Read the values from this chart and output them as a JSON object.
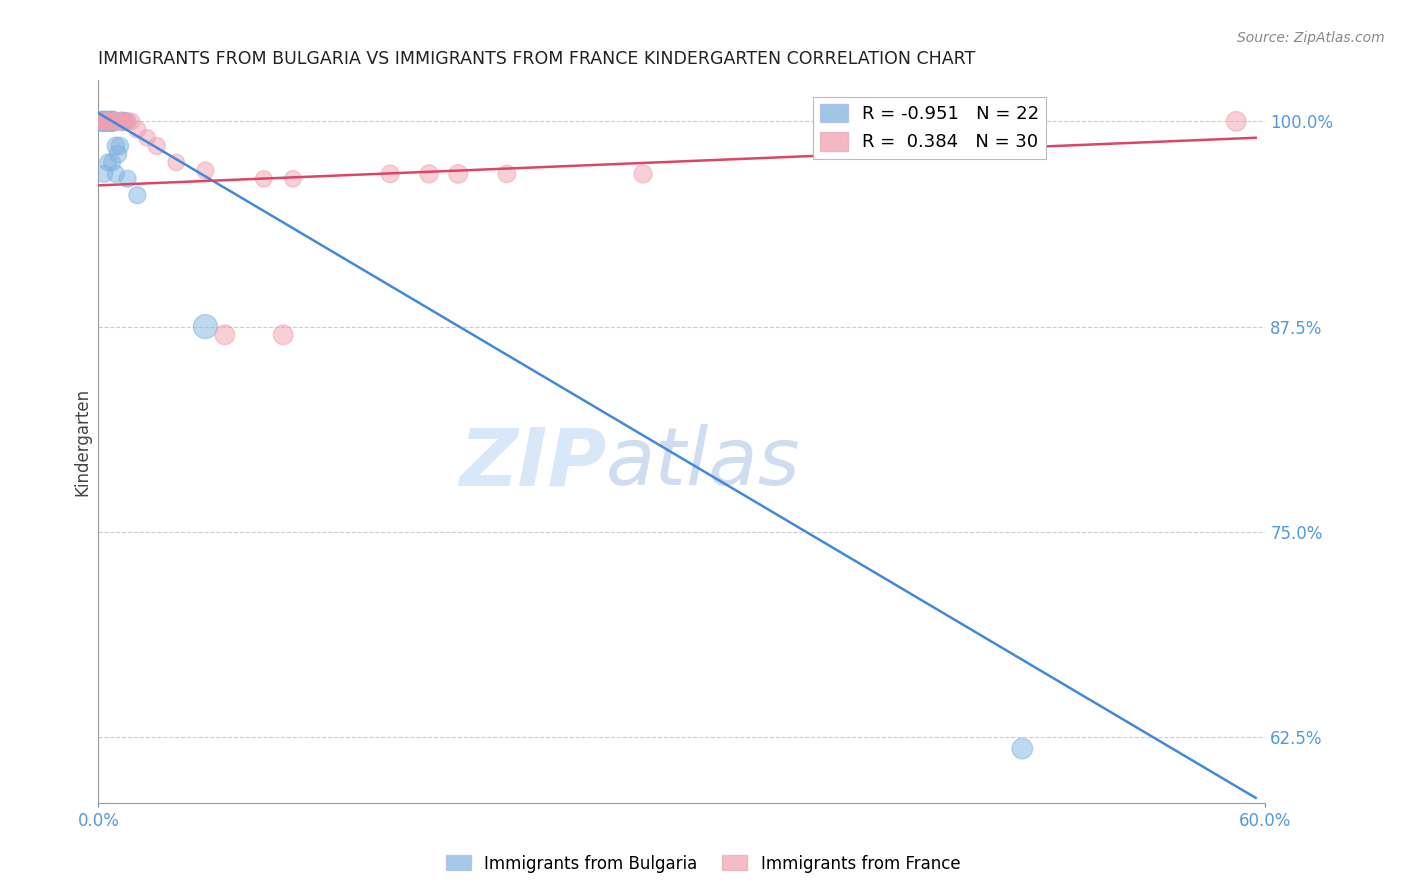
{
  "title": "IMMIGRANTS FROM BULGARIA VS IMMIGRANTS FROM FRANCE KINDERGARTEN CORRELATION CHART",
  "source": "Source: ZipAtlas.com",
  "ylabel": "Kindergarten",
  "watermark_zip": "ZIP",
  "watermark_atlas": "atlas",
  "x_min": 0.0,
  "x_max": 0.6,
  "y_min": 0.585,
  "y_max": 1.025,
  "y_ticks": [
    1.0,
    0.875,
    0.75,
    0.625
  ],
  "y_tick_labels": [
    "100.0%",
    "87.5%",
    "75.0%",
    "62.5%"
  ],
  "x_ticks": [
    0.0,
    0.6
  ],
  "x_tick_labels": [
    "0.0%",
    "60.0%"
  ],
  "legend_r1": "R = -0.951   N = 22",
  "legend_r2": "R =  0.384   N = 30",
  "bulgaria_color": "#7fb3e0",
  "france_color": "#f0a0b0",
  "blue_line_color": "#4488dd",
  "red_line_color": "#dd4466",
  "grid_color": "#cccccc",
  "tick_color": "#5599dd",
  "title_color": "#222222",
  "source_color": "#888888",
  "bg_color": "#ffffff",
  "blue_line_x": [
    0.0,
    0.595
  ],
  "blue_line_y": [
    1.005,
    0.588
  ],
  "red_line_x": [
    0.0,
    0.595
  ],
  "red_line_y": [
    0.961,
    0.99
  ],
  "bulgaria_points_x": [
    0.001,
    0.002,
    0.003,
    0.004,
    0.005,
    0.006,
    0.007,
    0.008,
    0.009,
    0.01,
    0.011,
    0.012,
    0.013,
    0.014,
    0.003,
    0.005,
    0.007,
    0.009,
    0.015,
    0.02,
    0.055,
    0.475
  ],
  "bulgaria_points_y": [
    1.0,
    1.0,
    1.0,
    1.0,
    1.0,
    1.0,
    1.0,
    1.0,
    0.985,
    0.98,
    0.985,
    1.0,
    1.0,
    1.0,
    0.968,
    0.975,
    0.975,
    0.968,
    0.965,
    0.955,
    0.875,
    0.618
  ],
  "bulgaria_sizes": [
    200,
    180,
    220,
    200,
    180,
    200,
    220,
    180,
    160,
    160,
    160,
    180,
    160,
    160,
    150,
    150,
    150,
    150,
    150,
    150,
    300,
    220
  ],
  "france_points_x": [
    0.001,
    0.002,
    0.003,
    0.004,
    0.005,
    0.006,
    0.007,
    0.008,
    0.009,
    0.01,
    0.011,
    0.012,
    0.013,
    0.015,
    0.017,
    0.02,
    0.025,
    0.03,
    0.04,
    0.055,
    0.065,
    0.085,
    0.095,
    0.1,
    0.15,
    0.17,
    0.185,
    0.21,
    0.28,
    0.585
  ],
  "france_points_y": [
    1.0,
    1.0,
    1.0,
    1.0,
    1.0,
    1.0,
    1.0,
    1.0,
    1.0,
    1.0,
    1.0,
    1.0,
    1.0,
    1.0,
    1.0,
    0.995,
    0.99,
    0.985,
    0.975,
    0.97,
    0.87,
    0.965,
    0.87,
    0.965,
    0.968,
    0.968,
    0.968,
    0.968,
    0.968,
    1.0
  ],
  "france_sizes": [
    140,
    150,
    140,
    150,
    140,
    150,
    140,
    150,
    140,
    150,
    140,
    150,
    140,
    150,
    140,
    150,
    140,
    150,
    140,
    150,
    200,
    140,
    200,
    140,
    160,
    170,
    180,
    160,
    170,
    200
  ]
}
